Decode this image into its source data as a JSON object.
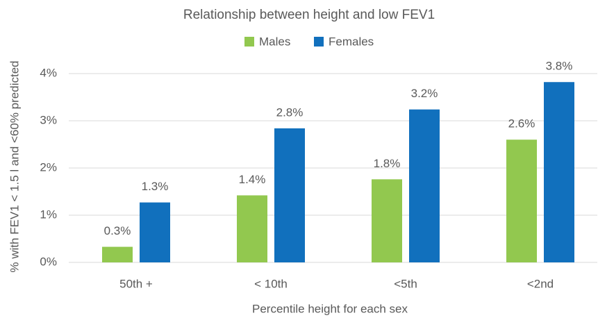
{
  "chart_data": {
    "type": "bar",
    "title": "Relationship between height and low FEV1",
    "x_label": "Percentile height for each sex",
    "y_label": "% with FEV1 < 1.5 l and <60% predicted",
    "categories": [
      "50th +",
      "< 10th",
      "<5th",
      "<2nd"
    ],
    "series": [
      {
        "name": "Males",
        "color": "#92c84f",
        "values": [
          0.33,
          1.42,
          1.76,
          2.6
        ],
        "value_labels": [
          "0.3%",
          "1.4%",
          "1.8%",
          "2.6%"
        ]
      },
      {
        "name": "Females",
        "color": "#1170bd",
        "values": [
          1.27,
          2.84,
          3.24,
          3.82
        ],
        "value_labels": [
          "1.3%",
          "2.8%",
          "3.2%",
          "3.8%"
        ]
      }
    ],
    "ylim": [
      0,
      4
    ],
    "yticks": [
      {
        "value": 0,
        "label": "0%"
      },
      {
        "value": 1,
        "label": "1%"
      },
      {
        "value": 2,
        "label": "2%"
      },
      {
        "value": 3,
        "label": "3%"
      },
      {
        "value": 4,
        "label": "4%"
      }
    ],
    "grid": true,
    "legend": "top"
  }
}
